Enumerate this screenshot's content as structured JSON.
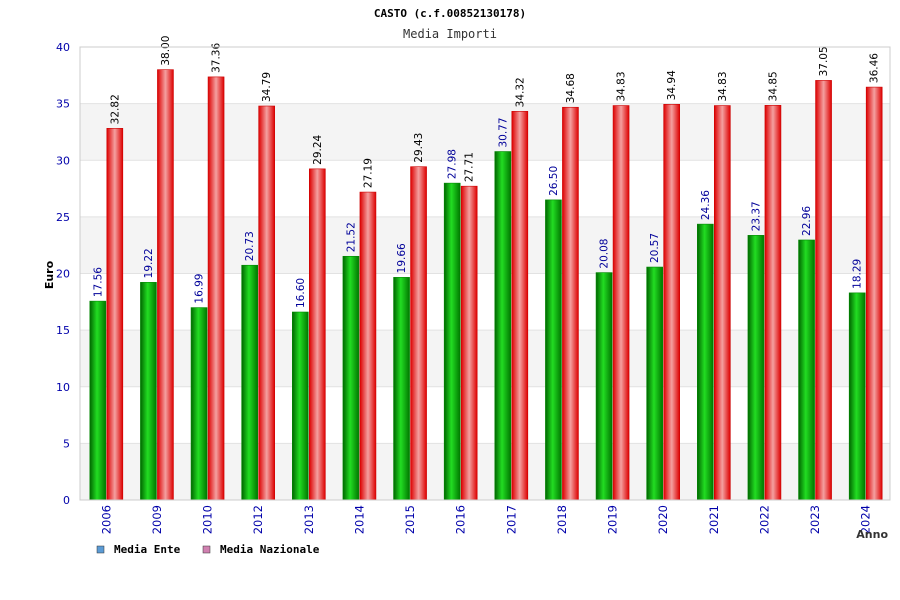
{
  "chart_data": {
    "type": "bar",
    "title": "CASTO (c.f.00852130178)",
    "subtitle": "Media Importi",
    "xlabel": "Anno",
    "ylabel": "Euro",
    "ylim": [
      0,
      40
    ],
    "yticks": [
      0,
      5,
      10,
      15,
      20,
      25,
      30,
      35,
      40
    ],
    "grid": true,
    "legend_position": "bottom-left",
    "categories": [
      "2006",
      "2009",
      "2010",
      "2012",
      "2013",
      "2014",
      "2015",
      "2016",
      "2017",
      "2018",
      "2019",
      "2020",
      "2021",
      "2022",
      "2023",
      "2024"
    ],
    "series": [
      {
        "name": "Media Ente",
        "color": "#00aa00",
        "legend_color": "#5b9bd5",
        "values": [
          17.56,
          19.22,
          16.99,
          20.73,
          16.6,
          21.52,
          19.66,
          27.98,
          30.77,
          26.5,
          20.08,
          20.57,
          24.36,
          23.37,
          22.96,
          18.29
        ],
        "labels": [
          "17.56",
          "19.22",
          "16.99",
          "20.73",
          "16.60",
          "21.52",
          "19.66",
          "27.98",
          "30.77",
          "26.50",
          "20.08",
          "20.57",
          "24.36",
          "23.37",
          "22.96",
          "18.29"
        ]
      },
      {
        "name": "Media Nazionale",
        "color": "#ee1111",
        "legend_color": "#d080b0",
        "values": [
          32.82,
          38.0,
          37.36,
          34.79,
          29.24,
          27.19,
          29.43,
          27.71,
          34.32,
          34.68,
          34.83,
          34.94,
          34.83,
          34.85,
          37.05,
          36.46
        ],
        "labels": [
          "32.82",
          "38.00",
          "37.36",
          "34.79",
          "29.24",
          "27.19",
          "29.43",
          "27.71",
          "34.32",
          "34.68",
          "34.83",
          "34.94",
          "34.83",
          "34.85",
          "37.05",
          "36.46"
        ]
      }
    ]
  }
}
